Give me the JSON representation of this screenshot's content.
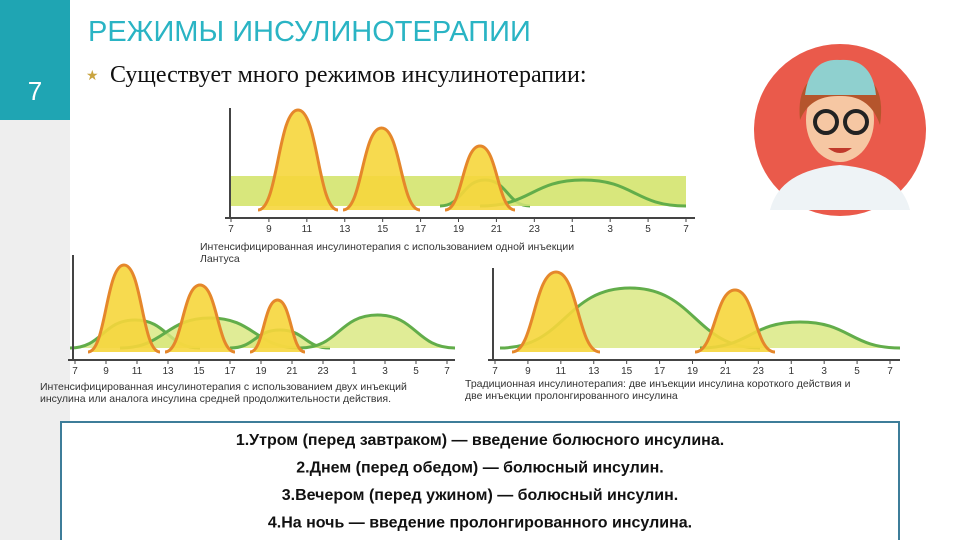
{
  "slide_number": "7",
  "title": "РЕЖИМЫ ИНСУЛИНОТЕРАПИИ",
  "subtitle": "Существует много режимов инсулинотерапии:",
  "diagrams": [
    {
      "hours": [
        "7",
        "9",
        "11",
        "13",
        "15",
        "17",
        "19",
        "21",
        "23",
        "1",
        "3",
        "5",
        "7"
      ],
      "caption": [
        "Интенсифицированная инсулинотерапия с использованием одной инъекции",
        "Лантуса"
      ]
    },
    {
      "hours": [
        "7",
        "9",
        "11",
        "13",
        "15",
        "17",
        "19",
        "21",
        "23",
        "1",
        "3",
        "5",
        "7"
      ],
      "caption": [
        "Интенсифицированная инсулинотерапия с использованием двух инъекций",
        "инсулина или аналога инсулина средней продолжительности действия."
      ]
    },
    {
      "hours": [
        "7",
        "9",
        "11",
        "13",
        "15",
        "17",
        "19",
        "21",
        "23",
        "1",
        "3",
        "5",
        "7"
      ],
      "caption": [
        "Традиционная инсулинотерапия: две инъекции инсулина короткого действия и",
        "две инъекции пролонгированного инсулина"
      ]
    }
  ],
  "list": [
    "1.Утром (перед завтраком) — введение болюсного инсулина.",
    "2.Днем (перед обедом) — болюсный инсулин.",
    "3.Вечером (перед ужином) — болюсный инсулин.",
    "4.На ночь — введение пролонгированного  инсулина."
  ]
}
